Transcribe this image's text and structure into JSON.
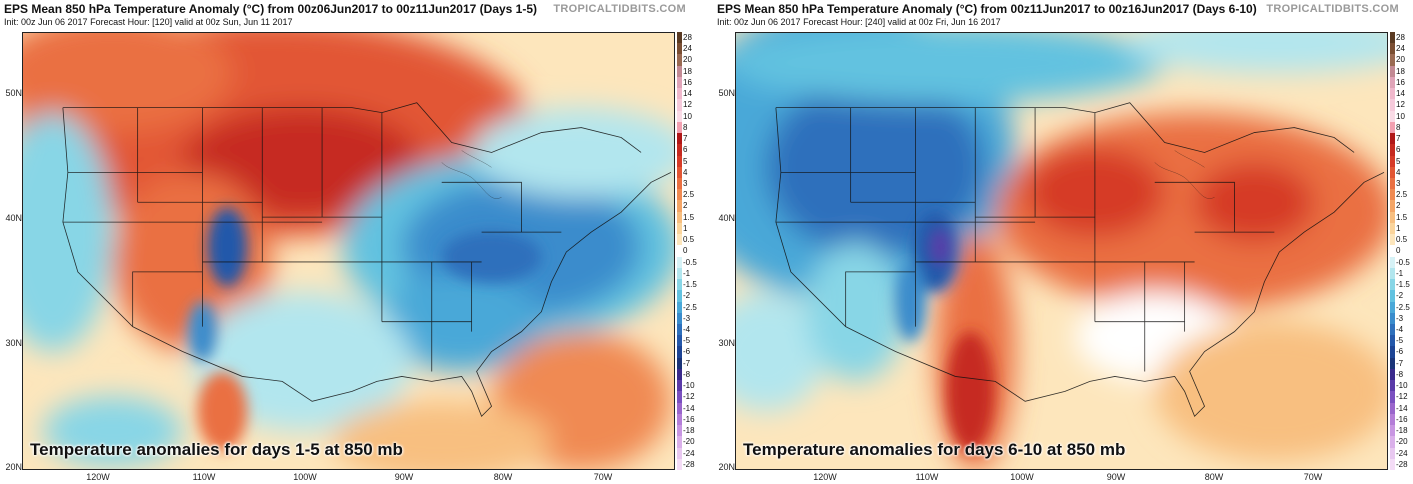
{
  "panels": [
    {
      "title": "EPS Mean 850 hPa Temperature Anomaly (°C) from 00z06Jun2017 to 00z11Jun2017 (Days 1-5)",
      "subtitle": "Init: 00z Jun 06 2017   Forecast Hour: [120]   valid at 00z Sun, Jun 11 2017",
      "brand": "TROPICALTIDBITS.COM",
      "overlay": "Temperature anomalies for days 1-5 at 850 mb"
    },
    {
      "title": "EPS Mean 850 hPa Temperature Anomaly (°C) from 00z11Jun2017 to 00z16Jun2017 (Days 6-10)",
      "subtitle": "Init: 00z Jun 06 2017   Forecast Hour: [240]   valid at 00z Fri, Jun 16 2017",
      "brand": "TROPICALTIDBITS.COM",
      "overlay": "Temperature anomalies for days 6-10 at 850 mb"
    }
  ],
  "lat_labels": [
    "50N",
    "40N",
    "30N",
    "20N"
  ],
  "lon_labels": [
    "120W",
    "110W",
    "100W",
    "90W",
    "80W",
    "70W"
  ],
  "colorbar": {
    "labels": [
      "28",
      "24",
      "20",
      "18",
      "16",
      "14",
      "12",
      "10",
      "8",
      "7",
      "6",
      "5",
      "4",
      "3",
      "2.5",
      "2",
      "1.5",
      "1",
      "0.5",
      "0",
      "-0.5",
      "-1",
      "-1.5",
      "-2",
      "-2.5",
      "-3",
      "-4",
      "-5",
      "-6",
      "-7",
      "-8",
      "-10",
      "-12",
      "-14",
      "-16",
      "-18",
      "-20",
      "-24",
      "-28"
    ],
    "colors": [
      "#5a3a22",
      "#7a4e32",
      "#9a6a52",
      "#c38a94",
      "#e0a4b8",
      "#f0b8cc",
      "#f6cadb",
      "#fadbe6",
      "#f2a0b0",
      "#b01818",
      "#c62a20",
      "#d63b28",
      "#e25634",
      "#ea7042",
      "#f08a52",
      "#f4a566",
      "#f8bf80",
      "#fbd59c",
      "#fde6bc",
      "#ffffff",
      "#d6f2f6",
      "#b2e6ee",
      "#88d6e6",
      "#62c2e0",
      "#4aa8d8",
      "#3a8ccc",
      "#2e70bc",
      "#2458aa",
      "#1d4494",
      "#1a3478",
      "#3a2a8c",
      "#5a3aa8",
      "#7a50c0",
      "#9a66cc",
      "#b47ed8",
      "#c896e2",
      "#dab0ea",
      "#e8c8f0",
      "#f4dcf6"
    ]
  }
}
